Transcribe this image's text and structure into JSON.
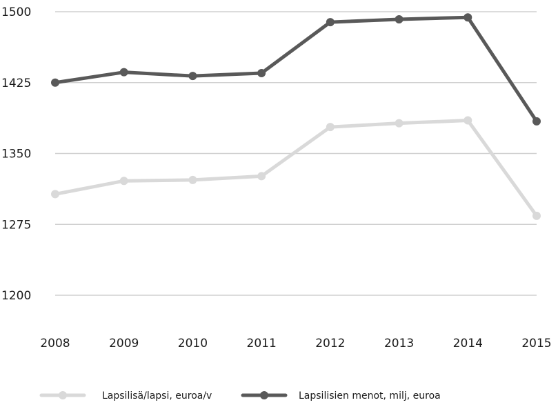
{
  "chart_data": {
    "type": "line",
    "x": [
      "2008",
      "2009",
      "2010",
      "2011",
      "2012",
      "2013",
      "2014",
      "2015"
    ],
    "ylim": [
      1200,
      1500
    ],
    "yticks": [
      1200,
      1275,
      1350,
      1425,
      1500
    ],
    "grid": true,
    "legend_position": "bottom",
    "series": [
      {
        "name": "Lapsilisä/lapsi, euroa/v",
        "color": "#d9d9d9",
        "values": [
          1307,
          1321,
          1322,
          1326,
          1378,
          1382,
          1385,
          1284
        ]
      },
      {
        "name": "Lapsilisien menot, milj, euroa",
        "color": "#595959",
        "values": [
          1425,
          1436,
          1432,
          1435,
          1489,
          1492,
          1494,
          1384
        ]
      }
    ]
  }
}
